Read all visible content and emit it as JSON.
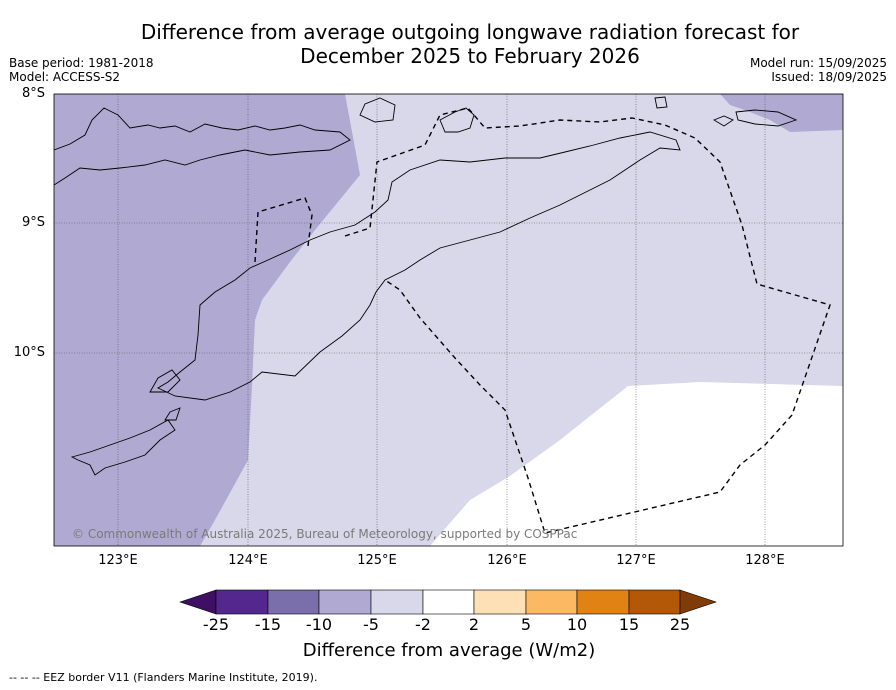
{
  "title_line1": "Difference from average outgoing longwave radiation forecast for",
  "title_line2": "December 2025 to February 2026",
  "base_period": "Base period: 1981-2018",
  "model": "Model: ACCESS-S2",
  "model_run": "Model run: 15/09/2025",
  "issued": "Issued: 18/09/2025",
  "copyright": "© Commonwealth of Australia 2025, Bureau of Meteorology, supported by COSPPac",
  "lat_labels": [
    "8°S",
    "9°S",
    "10°S"
  ],
  "lon_labels": [
    "123°E",
    "124°E",
    "125°E",
    "126°E",
    "127°E",
    "128°E"
  ],
  "colorbar": {
    "ticks": [
      "-25",
      "-15",
      "-10",
      "-5",
      "-2",
      "2",
      "5",
      "10",
      "15",
      "25"
    ],
    "colors": [
      "#3f0f63",
      "#54278f",
      "#7b6fab",
      "#b0a9d1",
      "#d8d8ea",
      "#ffffff",
      "#fee0b6",
      "#fdb863",
      "#e08214",
      "#b35806",
      "#7f3b08"
    ],
    "title": "Difference from average (W/m2)"
  },
  "footnote": "--  --  -- EEZ border V11 (Flanders Marine Institute, 2019)."
}
